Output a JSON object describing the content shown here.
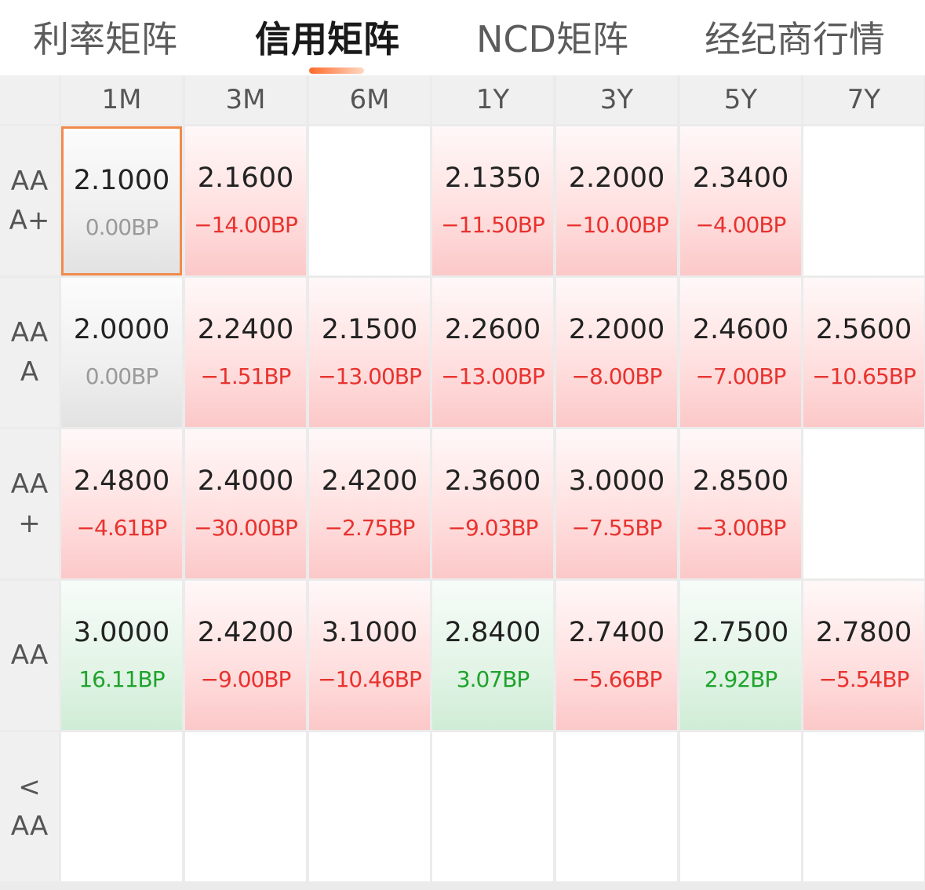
{
  "tabs": [
    {
      "label": "利率矩阵",
      "active": false
    },
    {
      "label": "信用矩阵",
      "active": true
    },
    {
      "label": "NCD矩阵",
      "active": false
    },
    {
      "label": "经纪商行情",
      "active": false
    }
  ],
  "columns": [
    "1M",
    "3M",
    "6M",
    "1Y",
    "3Y",
    "5Y",
    "7Y"
  ],
  "rows": [
    {
      "label": "AAA+",
      "cells": [
        {
          "rate": "2.1000",
          "bp": "0.00BP",
          "trend": "flat",
          "selected": true
        },
        {
          "rate": "2.1600",
          "bp": "−14.00BP",
          "trend": "up"
        },
        null,
        {
          "rate": "2.1350",
          "bp": "−11.50BP",
          "trend": "up"
        },
        {
          "rate": "2.2000",
          "bp": "−10.00BP",
          "trend": "up"
        },
        {
          "rate": "2.3400",
          "bp": "−4.00BP",
          "trend": "up"
        },
        null
      ]
    },
    {
      "label": "AAA",
      "cells": [
        {
          "rate": "2.0000",
          "bp": "0.00BP",
          "trend": "flat"
        },
        {
          "rate": "2.2400",
          "bp": "−1.51BP",
          "trend": "up"
        },
        {
          "rate": "2.1500",
          "bp": "−13.00BP",
          "trend": "up"
        },
        {
          "rate": "2.2600",
          "bp": "−13.00BP",
          "trend": "up"
        },
        {
          "rate": "2.2000",
          "bp": "−8.00BP",
          "trend": "up"
        },
        {
          "rate": "2.4600",
          "bp": "−7.00BP",
          "trend": "up"
        },
        {
          "rate": "2.5600",
          "bp": "−10.65BP",
          "trend": "up"
        }
      ]
    },
    {
      "label": "AA+",
      "cells": [
        {
          "rate": "2.4800",
          "bp": "−4.61BP",
          "trend": "up"
        },
        {
          "rate": "2.4000",
          "bp": "−30.00BP",
          "trend": "up"
        },
        {
          "rate": "2.4200",
          "bp": "−2.75BP",
          "trend": "up"
        },
        {
          "rate": "2.3600",
          "bp": "−9.03BP",
          "trend": "up"
        },
        {
          "rate": "3.0000",
          "bp": "−7.55BP",
          "trend": "up"
        },
        {
          "rate": "2.8500",
          "bp": "−3.00BP",
          "trend": "up"
        },
        null
      ]
    },
    {
      "label": "AA",
      "cells": [
        {
          "rate": "3.0000",
          "bp": "16.11BP",
          "trend": "down"
        },
        {
          "rate": "2.4200",
          "bp": "−9.00BP",
          "trend": "up"
        },
        {
          "rate": "3.1000",
          "bp": "−10.46BP",
          "trend": "up"
        },
        {
          "rate": "2.8400",
          "bp": "3.07BP",
          "trend": "down"
        },
        {
          "rate": "2.7400",
          "bp": "−5.66BP",
          "trend": "up"
        },
        {
          "rate": "2.7500",
          "bp": "2.92BP",
          "trend": "down"
        },
        {
          "rate": "2.7800",
          "bp": "−5.54BP",
          "trend": "up"
        }
      ]
    },
    {
      "label": "<AA",
      "cells": [
        null,
        null,
        null,
        null,
        null,
        null,
        null
      ]
    }
  ]
}
